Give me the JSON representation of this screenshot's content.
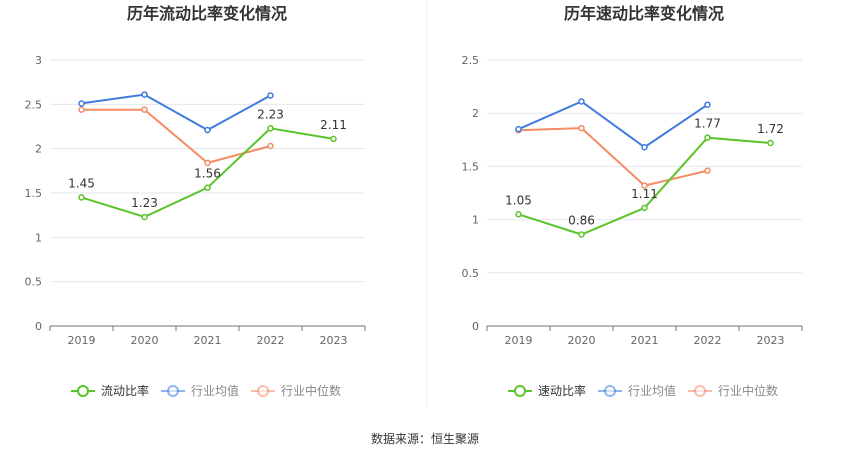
{
  "source_text": "数据来源：恒生聚源",
  "chart_data": [
    {
      "type": "line",
      "title": "历年流动比率变化情况",
      "categories": [
        "2019",
        "2020",
        "2021",
        "2022",
        "2023"
      ],
      "ylim": [
        0,
        3
      ],
      "yticks": [
        "0",
        "0.5",
        "1",
        "1.5",
        "2",
        "2.5",
        "3"
      ],
      "grid": true,
      "legend_position": "bottom",
      "series": [
        {
          "name": "流动比率",
          "color": "#5bc42a",
          "values": [
            1.45,
            1.23,
            1.56,
            2.23,
            2.11
          ],
          "labels": [
            "1.45",
            "1.23",
            "1.56",
            "2.23",
            "2.11"
          ],
          "show_labels": true
        },
        {
          "name": "行业均值",
          "color": "#3f7ae0",
          "values": [
            2.51,
            2.61,
            2.21,
            2.6,
            null
          ],
          "show_labels": false
        },
        {
          "name": "行业中位数",
          "color": "#f48b65",
          "values": [
            2.44,
            2.44,
            1.84,
            2.03,
            null
          ],
          "show_labels": false
        }
      ]
    },
    {
      "type": "line",
      "title": "历年速动比率变化情况",
      "categories": [
        "2019",
        "2020",
        "2021",
        "2022",
        "2023"
      ],
      "ylim": [
        0,
        2.5
      ],
      "yticks": [
        "0",
        "0.5",
        "1",
        "1.5",
        "2",
        "2.5"
      ],
      "grid": true,
      "legend_position": "bottom",
      "series": [
        {
          "name": "速动比率",
          "color": "#5bc42a",
          "values": [
            1.05,
            0.86,
            1.11,
            1.77,
            1.72
          ],
          "labels": [
            "1.05",
            "0.86",
            "1.11",
            "1.77",
            "1.72"
          ],
          "show_labels": true
        },
        {
          "name": "行业均值",
          "color": "#3f7ae0",
          "values": [
            1.85,
            2.11,
            1.68,
            2.08,
            null
          ],
          "show_labels": false
        },
        {
          "name": "行业中位数",
          "color": "#f48b65",
          "values": [
            1.84,
            1.86,
            1.32,
            1.46,
            null
          ],
          "show_labels": false
        }
      ]
    }
  ]
}
